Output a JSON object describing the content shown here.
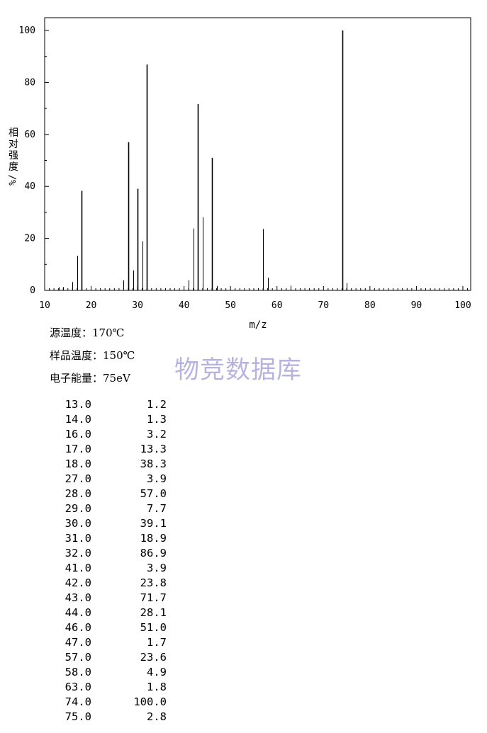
{
  "chart_data": {
    "type": "bar",
    "xlabel": "m/z",
    "ylabel_chars": [
      "相",
      "对",
      "强",
      "度"
    ],
    "ylabel_unit": "%/",
    "xlim": [
      10,
      101
    ],
    "ylim": [
      0,
      100
    ],
    "xticks": [
      10,
      20,
      30,
      40,
      50,
      60,
      70,
      80,
      90,
      100
    ],
    "yticks": [
      0,
      20,
      40,
      60,
      80,
      100
    ],
    "peaks": [
      {
        "mz": 13.0,
        "intensity": 1.2
      },
      {
        "mz": 14.0,
        "intensity": 1.3
      },
      {
        "mz": 16.0,
        "intensity": 3.2
      },
      {
        "mz": 17.0,
        "intensity": 13.3
      },
      {
        "mz": 18.0,
        "intensity": 38.3
      },
      {
        "mz": 27.0,
        "intensity": 3.9
      },
      {
        "mz": 28.0,
        "intensity": 57.0
      },
      {
        "mz": 29.0,
        "intensity": 7.7
      },
      {
        "mz": 30.0,
        "intensity": 39.1
      },
      {
        "mz": 31.0,
        "intensity": 18.9
      },
      {
        "mz": 32.0,
        "intensity": 86.9
      },
      {
        "mz": 41.0,
        "intensity": 3.9
      },
      {
        "mz": 42.0,
        "intensity": 23.8
      },
      {
        "mz": 43.0,
        "intensity": 71.7
      },
      {
        "mz": 44.0,
        "intensity": 28.1
      },
      {
        "mz": 46.0,
        "intensity": 51.0
      },
      {
        "mz": 47.0,
        "intensity": 1.7
      },
      {
        "mz": 57.0,
        "intensity": 23.6
      },
      {
        "mz": 58.0,
        "intensity": 4.9
      },
      {
        "mz": 63.0,
        "intensity": 1.8
      },
      {
        "mz": 74.0,
        "intensity": 100.0
      },
      {
        "mz": 75.0,
        "intensity": 2.8
      }
    ]
  },
  "conditions": {
    "source_temp": "源温度：170℃",
    "sample_temp": "样品温度：150℃",
    "electron_energy": "电子能量：75eV"
  },
  "watermark": "物竞数据库",
  "peak_table": [
    {
      "mz": "13.0",
      "intensity": "1.2"
    },
    {
      "mz": "14.0",
      "intensity": "1.3"
    },
    {
      "mz": "16.0",
      "intensity": "3.2"
    },
    {
      "mz": "17.0",
      "intensity": "13.3"
    },
    {
      "mz": "18.0",
      "intensity": "38.3"
    },
    {
      "mz": "27.0",
      "intensity": "3.9"
    },
    {
      "mz": "28.0",
      "intensity": "57.0"
    },
    {
      "mz": "29.0",
      "intensity": "7.7"
    },
    {
      "mz": "30.0",
      "intensity": "39.1"
    },
    {
      "mz": "31.0",
      "intensity": "18.9"
    },
    {
      "mz": "32.0",
      "intensity": "86.9"
    },
    {
      "mz": "41.0",
      "intensity": "3.9"
    },
    {
      "mz": "42.0",
      "intensity": "23.8"
    },
    {
      "mz": "43.0",
      "intensity": "71.7"
    },
    {
      "mz": "44.0",
      "intensity": "28.1"
    },
    {
      "mz": "46.0",
      "intensity": "51.0"
    },
    {
      "mz": "47.0",
      "intensity": "1.7"
    },
    {
      "mz": "57.0",
      "intensity": "23.6"
    },
    {
      "mz": "58.0",
      "intensity": "4.9"
    },
    {
      "mz": "63.0",
      "intensity": "1.8"
    },
    {
      "mz": "74.0",
      "intensity": "100.0"
    },
    {
      "mz": "75.0",
      "intensity": "2.8"
    }
  ]
}
